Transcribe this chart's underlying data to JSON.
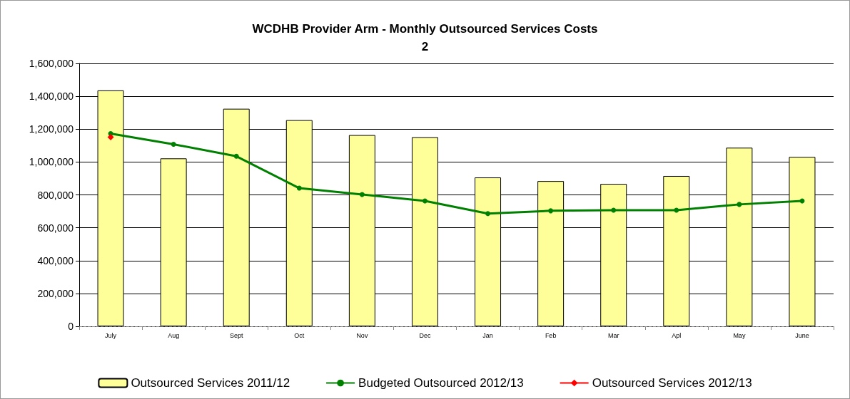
{
  "chart_data": {
    "type": "bar",
    "title": "WCDHB Provider Arm - Monthly Outsourced Services Costs",
    "subtitle": "2",
    "categories": [
      "July",
      "Aug",
      "Sept",
      "Oct",
      "Nov",
      "Dec",
      "Jan",
      "Feb",
      "Mar",
      "Apl",
      "May",
      "June"
    ],
    "series": [
      {
        "name": "Outsourced Services 2011/12",
        "color": "#ffff99",
        "values": [
          1436000,
          1022000,
          1324000,
          1255000,
          1164000,
          1151000,
          906000,
          884000,
          867000,
          915000,
          1087000,
          1031000
        ]
      },
      {
        "name": "Budgeted Outsourced 2012/13",
        "type": "line",
        "color": "#008000",
        "marker": "circle",
        "values": [
          1173000,
          1108000,
          1035000,
          841000,
          802000,
          763000,
          686000,
          703000,
          707000,
          707000,
          742000,
          763000
        ]
      },
      {
        "name": "Outsourced Services 2012/13",
        "type": "line",
        "color": "#ff0000",
        "marker": "diamond",
        "values": [
          1151000,
          null,
          null,
          null,
          null,
          null,
          null,
          null,
          null,
          null,
          null,
          null
        ]
      }
    ],
    "ylim": [
      0,
      1600000
    ],
    "yticks": [
      0,
      {
        "value": 200000,
        "label": "200,000"
      },
      {
        "value": 400000,
        "label": "400,000"
      },
      {
        "value": 600000,
        "label": "600,000"
      },
      {
        "value": 800000,
        "label": "800,000"
      },
      {
        "value": 1000000,
        "label": "1,000,000"
      },
      {
        "value": 1200000,
        "label": "1,200,000"
      },
      {
        "value": 1400000,
        "label": "1,400,000"
      },
      {
        "value": 1600000,
        "label": "1,600,000"
      }
    ],
    "grid": "y",
    "legend": "bottom"
  }
}
